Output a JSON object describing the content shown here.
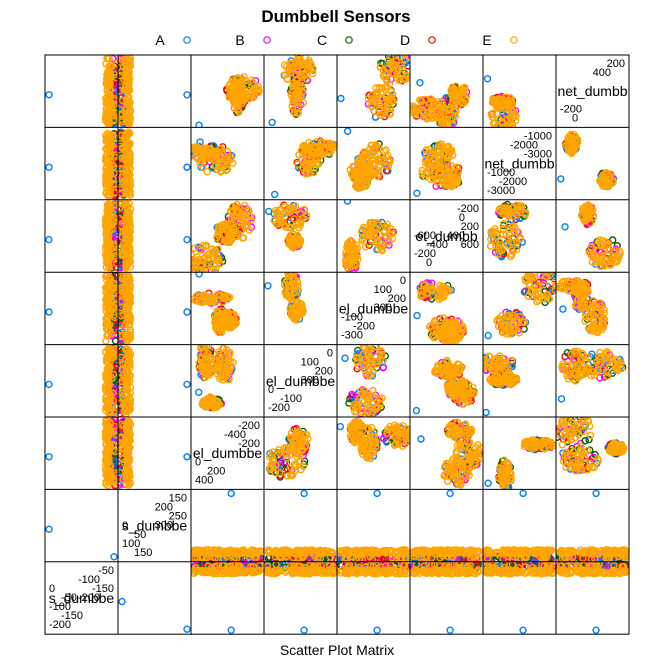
{
  "chart_data": {
    "type": "scatter",
    "title": "Dumbbell Sensors",
    "xlabel": "Scatter Plot Matrix",
    "legend": {
      "placement": "top",
      "entries": [
        {
          "name": "A",
          "color": "#0080ff"
        },
        {
          "name": "B",
          "color": "#ff00ff"
        },
        {
          "name": "C",
          "color": "#006400"
        },
        {
          "name": "D",
          "color": "#ff0000"
        },
        {
          "name": "E",
          "color": "#ffa500"
        }
      ]
    },
    "variables": [
      {
        "label": "s_dumbbe",
        "ticks_a": [
          "-50",
          "-100",
          "-150",
          "-200"
        ],
        "ticks_b": [
          "0",
          "-50",
          "-100",
          "-150",
          "-200"
        ]
      },
      {
        "label": "s_dumbbe",
        "ticks_a": [
          "150",
          "200",
          "250",
          "300"
        ],
        "ticks_b": [
          "0",
          "50",
          "100",
          "150"
        ]
      },
      {
        "label": "el_dumbbe",
        "ticks_a": [
          "-200",
          "-400",
          "-200"
        ],
        "ticks_b": [
          "0",
          "200",
          "400"
        ]
      },
      {
        "label": "el_dumbbe",
        "ticks_a": [
          "0",
          "100",
          "200",
          "300"
        ],
        "ticks_b": [
          "0",
          "-100",
          "-200"
        ]
      },
      {
        "label": "el_dumbbe",
        "ticks_a": [
          "0",
          "100",
          "200",
          "300"
        ],
        "ticks_b": [
          "-100",
          "-200",
          "-300"
        ]
      },
      {
        "label": "et_dumbb",
        "ticks_a": [
          "-200",
          "0",
          "200",
          "400",
          "600"
        ],
        "ticks_b": [
          "-600",
          "-400",
          "-200",
          "0"
        ]
      },
      {
        "label": "net_dumbb",
        "ticks_a": [
          "-1000",
          "-2000",
          "-3000"
        ],
        "ticks_b": [
          "-1000",
          "-2000",
          "-3000"
        ]
      },
      {
        "label": "net_dumbb",
        "ticks_a": [
          "200",
          "400"
        ],
        "ticks_b": [
          "-200",
          "0"
        ]
      }
    ],
    "grid": false
  }
}
